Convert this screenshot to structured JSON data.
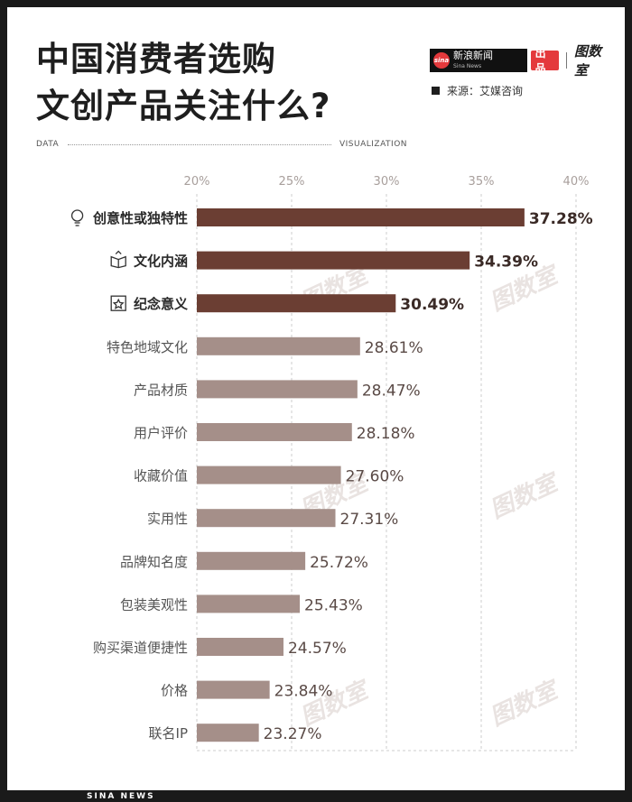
{
  "title": {
    "line1": "中国消费者选购",
    "line2": "文创产品关注什么?"
  },
  "logo": {
    "sina_mark": "sina",
    "sina_cn": "新浪新闻",
    "sina_en": "Sina News",
    "produce": "出品",
    "brand": "图数室"
  },
  "source": "来源：艾媒咨询",
  "divider": {
    "left": "DATA",
    "right": "VISUALIZATION"
  },
  "footer": "SINA NEWS",
  "colors": {
    "highlight": "#6b3e33",
    "normal": "#a58f89",
    "grid": "#cccccc",
    "tick": "#a89f9c"
  },
  "chart_data": {
    "type": "bar",
    "orientation": "horizontal",
    "xlim": [
      20,
      40
    ],
    "xticks": [
      "20%",
      "25%",
      "30%",
      "35%",
      "40%"
    ],
    "grid": true,
    "categories": [
      "创意性或独特性",
      "文化内涵",
      "纪念意义",
      "特色地域文化",
      "产品材质",
      "用户评价",
      "收藏价值",
      "实用性",
      "品牌知名度",
      "包装美观性",
      "购买渠道便捷性",
      "价格",
      "联名IP"
    ],
    "values": [
      37.28,
      34.39,
      30.49,
      28.61,
      28.47,
      28.18,
      27.6,
      27.31,
      25.72,
      25.43,
      24.57,
      23.84,
      23.27
    ],
    "value_labels": [
      "37.28%",
      "34.39%",
      "30.49%",
      "28.61%",
      "28.47%",
      "28.18%",
      "27.60%",
      "27.31%",
      "25.72%",
      "25.43%",
      "24.57%",
      "23.84%",
      "23.27%"
    ],
    "highlighted": [
      true,
      true,
      true,
      false,
      false,
      false,
      false,
      false,
      false,
      false,
      false,
      false,
      false
    ],
    "icons": [
      "lightbulb-icon",
      "book-icon",
      "badge-icon",
      null,
      null,
      null,
      null,
      null,
      null,
      null,
      null,
      null,
      null
    ]
  }
}
